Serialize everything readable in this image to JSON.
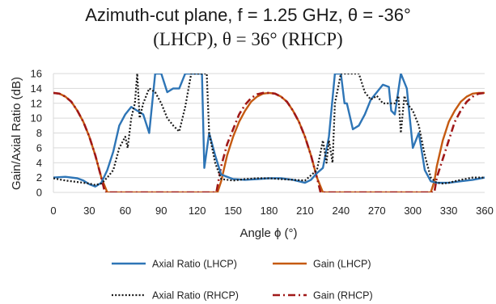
{
  "chart_data": {
    "type": "line",
    "title_line1": "Azimuth-cut plane, f = 1.25 GHz, θ = -36°",
    "title_line2": "(LHCP), θ = 36° (RHCP)",
    "xlabel": "Angle ϕ (°)",
    "ylabel": "Gain/Axial Ratio (dB)",
    "xlim": [
      0,
      360
    ],
    "ylim": [
      0,
      16
    ],
    "xticks": [
      0,
      30,
      60,
      90,
      120,
      150,
      180,
      210,
      240,
      270,
      300,
      330,
      360
    ],
    "yticks": [
      0,
      2,
      4,
      6,
      8,
      10,
      12,
      14,
      16
    ],
    "grid": "horizontal",
    "legend_position": "bottom",
    "series": [
      {
        "name": "Axial Ratio (LHCP)",
        "color": "#2e75b6",
        "style": "solid",
        "x": [
          0,
          10,
          20,
          25,
          30,
          35,
          40,
          45,
          50,
          55,
          60,
          65,
          70,
          75,
          80,
          85,
          90,
          95,
          100,
          105,
          110,
          115,
          120,
          124,
          126,
          130,
          135,
          140,
          150,
          160,
          170,
          180,
          190,
          200,
          210,
          215,
          220,
          225,
          230,
          235,
          237,
          240,
          243,
          245,
          250,
          255,
          260,
          265,
          270,
          275,
          280,
          282,
          285,
          290,
          295,
          300,
          305,
          310,
          315,
          320,
          330,
          340,
          350,
          360
        ],
        "y": [
          2,
          2.1,
          1.9,
          1.6,
          1.1,
          0.8,
          1.3,
          3,
          5.5,
          9,
          10.5,
          11.5,
          11,
          10.5,
          8,
          16,
          16,
          13.5,
          14,
          14,
          16,
          16,
          16,
          16,
          3.3,
          8,
          5,
          2.4,
          1.8,
          1.7,
          1.8,
          1.9,
          1.9,
          1.7,
          1.3,
          1.7,
          2.6,
          3.3,
          7.5,
          16,
          16,
          16,
          12,
          12,
          8.5,
          9,
          10.5,
          12.5,
          13.5,
          14.5,
          14.2,
          11,
          10.5,
          16,
          14,
          6,
          8,
          3,
          1.5,
          1.3,
          1.3,
          1.5,
          1.7,
          2
        ]
      },
      {
        "name": "Gain (LHCP)",
        "color": "#c55a11",
        "style": "solid",
        "x": [
          0,
          5,
          10,
          15,
          20,
          25,
          30,
          35,
          40,
          45,
          48,
          137,
          140,
          145,
          150,
          155,
          160,
          165,
          170,
          175,
          180,
          185,
          190,
          195,
          200,
          205,
          210,
          215,
          220,
          225,
          228,
          315,
          318,
          320,
          325,
          330,
          335,
          340,
          345,
          350,
          355,
          360
        ],
        "y": [
          13.4,
          13.3,
          12.9,
          12.2,
          11,
          9.5,
          7.5,
          5,
          2,
          0,
          0,
          0,
          1.5,
          5,
          7.5,
          9.5,
          11,
          12.2,
          12.9,
          13.3,
          13.4,
          13.3,
          12.9,
          12.2,
          11,
          9.5,
          7.5,
          5,
          2,
          0,
          0,
          0,
          1.5,
          3.5,
          7,
          9.5,
          11,
          12.2,
          12.9,
          13.3,
          13.4,
          13.4
        ]
      },
      {
        "name": "Axial Ratio (RHCP)",
        "color": "#1a1a1a",
        "style": "dotted",
        "x": [
          0,
          10,
          20,
          30,
          35,
          40,
          45,
          50,
          55,
          60,
          62,
          65,
          68,
          70,
          72,
          75,
          80,
          85,
          90,
          95,
          100,
          105,
          110,
          115,
          120,
          125,
          128,
          130,
          135,
          140,
          150,
          160,
          170,
          180,
          190,
          200,
          210,
          220,
          225,
          228,
          230,
          233,
          235,
          240,
          245,
          250,
          255,
          260,
          265,
          270,
          275,
          280,
          285,
          288,
          290,
          293,
          295,
          300,
          305,
          310,
          315,
          320,
          325,
          330,
          340,
          350,
          360
        ],
        "y": [
          1.9,
          1.6,
          1.4,
          1.2,
          1,
          1.2,
          2,
          3,
          6,
          7.5,
          6,
          10,
          12,
          16,
          10,
          12,
          14,
          13.5,
          12,
          10,
          9,
          8.2,
          11.5,
          16,
          16,
          16,
          16,
          8,
          4,
          1.8,
          1.6,
          1.8,
          1.9,
          1.9,
          1.8,
          1.7,
          1.6,
          3,
          7,
          4,
          7,
          4,
          12,
          16,
          16,
          16,
          16,
          13.5,
          12.5,
          13,
          12,
          12,
          12,
          13,
          8,
          13,
          12,
          11,
          9,
          5,
          2,
          1.3,
          1.2,
          1.3,
          1.7,
          2,
          2
        ]
      },
      {
        "name": "Gain (RHCP)",
        "color": "#a01818",
        "style": "dashdot",
        "x": [
          0,
          5,
          10,
          15,
          20,
          25,
          30,
          35,
          40,
          43,
          45,
          133,
          136,
          140,
          145,
          150,
          155,
          160,
          165,
          170,
          175,
          180,
          185,
          190,
          195,
          200,
          205,
          210,
          215,
          220,
          223,
          225,
          314,
          316,
          318,
          320,
          325,
          330,
          335,
          340,
          345,
          350,
          355,
          360
        ],
        "y": [
          13.4,
          13.3,
          12.9,
          12.2,
          11,
          9.5,
          7.5,
          5,
          2,
          0,
          0,
          0,
          0,
          3.5,
          6.5,
          8.5,
          10.5,
          11.8,
          12.7,
          13.2,
          13.4,
          13.4,
          13.3,
          12.9,
          12.2,
          11,
          9.5,
          7.5,
          5,
          2,
          0,
          0,
          0,
          0,
          0,
          2,
          4.5,
          7,
          9.5,
          11,
          12.2,
          12.9,
          13.3,
          13.4
        ]
      }
    ]
  }
}
